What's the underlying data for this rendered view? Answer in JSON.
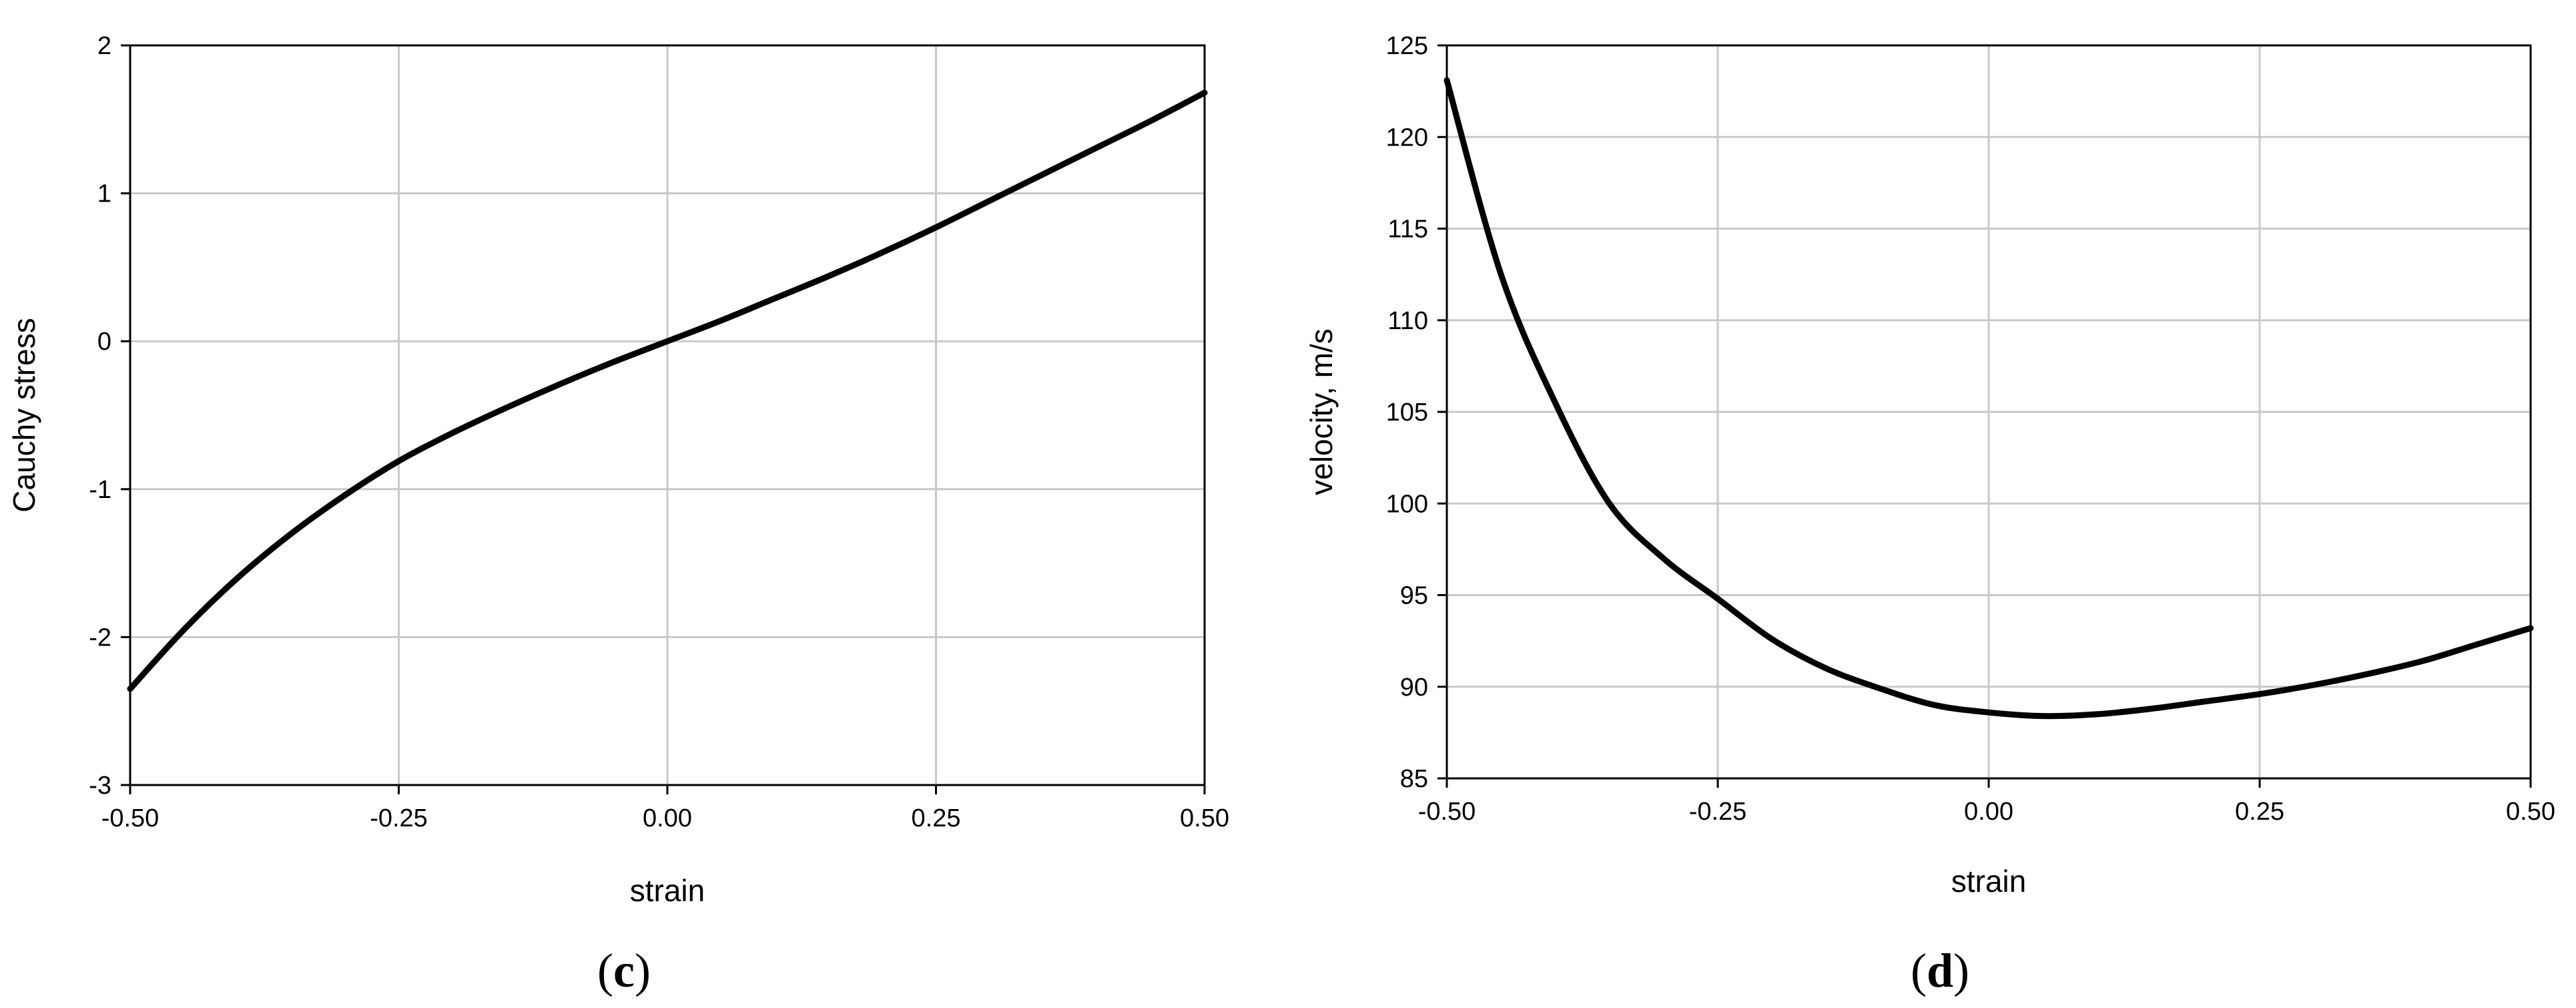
{
  "chart_data": [
    {
      "type": "line",
      "panel_label": "c",
      "xlabel": "strain",
      "ylabel": "Cauchy stress",
      "xlim": [
        -0.5,
        0.5
      ],
      "ylim": [
        -3,
        2
      ],
      "xticks": [
        -0.5,
        -0.25,
        0.0,
        0.25,
        0.5
      ],
      "xtick_labels": [
        "-0.50",
        "-0.25",
        "0.00",
        "0.25",
        "0.50"
      ],
      "yticks": [
        -3,
        -2,
        -1,
        0,
        1,
        2
      ],
      "ytick_labels": [
        "-3",
        "-2",
        "-1",
        "0",
        "1",
        "2"
      ],
      "grid": true,
      "line_color": "#000000",
      "series": [
        {
          "x": [
            -0.5,
            -0.45,
            -0.4,
            -0.35,
            -0.3,
            -0.25,
            -0.2,
            -0.15,
            -0.1,
            -0.05,
            0.0,
            0.05,
            0.1,
            0.15,
            0.2,
            0.25,
            0.3,
            0.35,
            0.4,
            0.45,
            0.5
          ],
          "y": [
            -2.35,
            -1.95,
            -1.6,
            -1.3,
            -1.04,
            -0.81,
            -0.62,
            -0.45,
            -0.29,
            -0.14,
            0.0,
            0.14,
            0.29,
            0.44,
            0.6,
            0.77,
            0.95,
            1.13,
            1.31,
            1.49,
            1.68
          ]
        }
      ]
    },
    {
      "type": "line",
      "panel_label": "d",
      "xlabel": "strain",
      "ylabel": "velocity, m/s",
      "xlim": [
        -0.5,
        0.5
      ],
      "ylim": [
        85,
        125
      ],
      "xticks": [
        -0.5,
        -0.25,
        0.0,
        0.25,
        0.5
      ],
      "xtick_labels": [
        "-0.50",
        "-0.25",
        "0.00",
        "0.25",
        "0.50"
      ],
      "yticks": [
        85,
        90,
        95,
        100,
        105,
        110,
        115,
        120,
        125
      ],
      "ytick_labels": [
        "85",
        "90",
        "95",
        "100",
        "105",
        "110",
        "115",
        "120",
        "125"
      ],
      "grid": true,
      "line_color": "#000000",
      "series": [
        {
          "x": [
            -0.5,
            -0.45,
            -0.4,
            -0.35,
            -0.3,
            -0.25,
            -0.2,
            -0.15,
            -0.1,
            -0.05,
            0.0,
            0.05,
            0.1,
            0.15,
            0.2,
            0.25,
            0.3,
            0.35,
            0.4,
            0.45,
            0.5
          ],
          "y": [
            123.1,
            112.5,
            105.5,
            100.0,
            97.0,
            94.8,
            92.6,
            91.0,
            89.9,
            89.0,
            88.6,
            88.4,
            88.5,
            88.8,
            89.2,
            89.6,
            90.1,
            90.7,
            91.4,
            92.3,
            93.2
          ]
        }
      ]
    }
  ]
}
